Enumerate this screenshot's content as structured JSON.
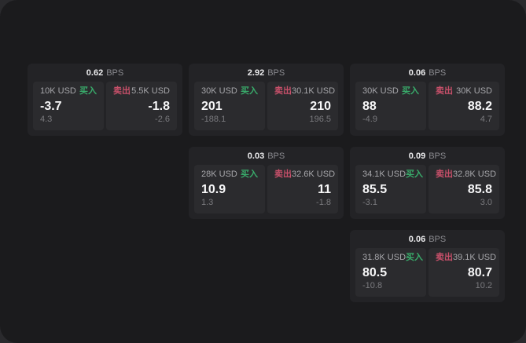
{
  "labels": {
    "bps_suffix": "BPS",
    "buy": "买入",
    "sell": "卖出"
  },
  "colors": {
    "buy_green": "#39ac6b",
    "sell_red": "#c8506a",
    "screen_bg": "#1b1b1d",
    "card_bg": "#232326",
    "tile_bg": "#2b2b2e"
  },
  "cards": [
    {
      "bps": "0.62",
      "buy": {
        "amount": "10K USD",
        "price": "-3.7",
        "delta": "4.3"
      },
      "sell": {
        "amount": "5.5K USD",
        "price": "-1.8",
        "delta": "-2.6"
      }
    },
    {
      "bps": "2.92",
      "buy": {
        "amount": "30K USD",
        "price": "201",
        "delta": "-188.1"
      },
      "sell": {
        "amount": "30.1K USD",
        "price": "210",
        "delta": "196.5"
      }
    },
    {
      "bps": "0.06",
      "buy": {
        "amount": "30K USD",
        "price": "88",
        "delta": "-4.9"
      },
      "sell": {
        "amount": "30K USD",
        "price": "88.2",
        "delta": "4.7"
      }
    },
    {
      "bps": "0.03",
      "buy": {
        "amount": "28K USD",
        "price": "10.9",
        "delta": "1.3"
      },
      "sell": {
        "amount": "32.6K USD",
        "price": "11",
        "delta": "-1.8"
      }
    },
    {
      "bps": "0.09",
      "buy": {
        "amount": "34.1K USD",
        "price": "85.5",
        "delta": "-3.1"
      },
      "sell": {
        "amount": "32.8K USD",
        "price": "85.8",
        "delta": "3.0"
      }
    },
    {
      "bps": "0.06",
      "buy": {
        "amount": "31.8K USD",
        "price": "80.5",
        "delta": "-10.8"
      },
      "sell": {
        "amount": "39.1K USD",
        "price": "80.7",
        "delta": "10.2"
      }
    }
  ]
}
